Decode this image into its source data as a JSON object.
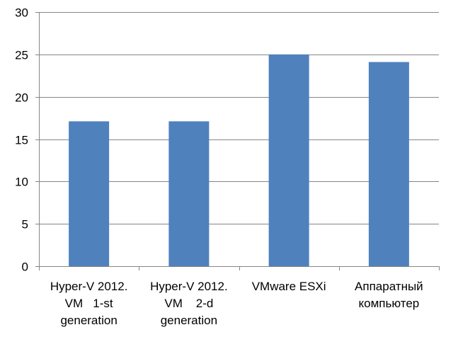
{
  "chart_data": {
    "type": "bar",
    "title": "",
    "xlabel": "",
    "ylabel": "",
    "ylim": [
      0,
      30
    ],
    "yticks": [
      0,
      5,
      10,
      15,
      20,
      25,
      30
    ],
    "grid": true,
    "legend": "none",
    "categories": [
      [
        "Hyper-V 2012.",
        "VM   1-st",
        "generation"
      ],
      [
        "Hyper-V 2012.",
        "VM    2-d",
        "generation"
      ],
      [
        "VMware ESXi"
      ],
      [
        "Аппаратный",
        "компьютер"
      ]
    ],
    "values": [
      17.1,
      17.1,
      25.0,
      24.1
    ],
    "bar_color": "#4f81bd",
    "grid_color": "#868686",
    "axis_color": "#868686"
  }
}
